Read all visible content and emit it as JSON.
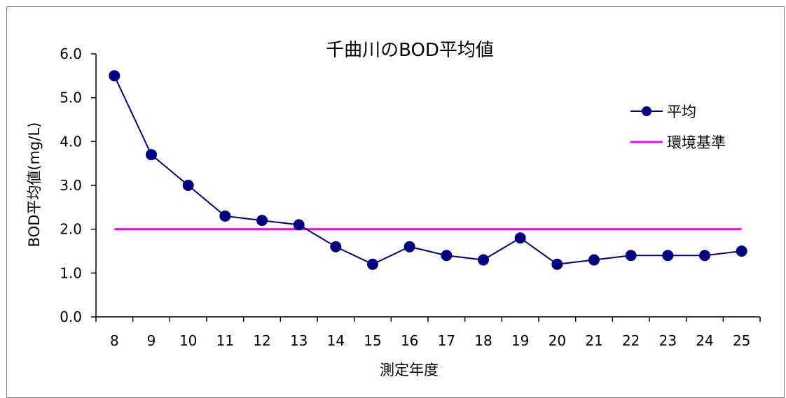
{
  "chart_data": {
    "type": "line",
    "title": "千曲川のBOD平均値",
    "xlabel": "測定年度",
    "ylabel": "BOD平均値(mg/L)",
    "ylim": [
      0,
      6
    ],
    "y_ticks": [
      "0.0",
      "1.0",
      "2.0",
      "3.0",
      "4.0",
      "5.0",
      "6.0"
    ],
    "categories": [
      "8",
      "9",
      "10",
      "11",
      "12",
      "13",
      "14",
      "15",
      "16",
      "17",
      "18",
      "19",
      "20",
      "21",
      "22",
      "23",
      "24",
      "25"
    ],
    "series": [
      {
        "name": "平均",
        "color": "#000080",
        "marker": "circle",
        "values": [
          5.5,
          3.7,
          3.0,
          2.3,
          2.2,
          2.1,
          1.6,
          1.2,
          1.6,
          1.4,
          1.3,
          1.8,
          1.2,
          1.3,
          1.4,
          1.4,
          1.4,
          1.5
        ]
      },
      {
        "name": "環境基準",
        "color": "#ff00ff",
        "marker": "none",
        "values": [
          2.0,
          2.0,
          2.0,
          2.0,
          2.0,
          2.0,
          2.0,
          2.0,
          2.0,
          2.0,
          2.0,
          2.0,
          2.0,
          2.0,
          2.0,
          2.0,
          2.0,
          2.0
        ]
      }
    ],
    "legend_position": "top-right",
    "grid": false
  }
}
